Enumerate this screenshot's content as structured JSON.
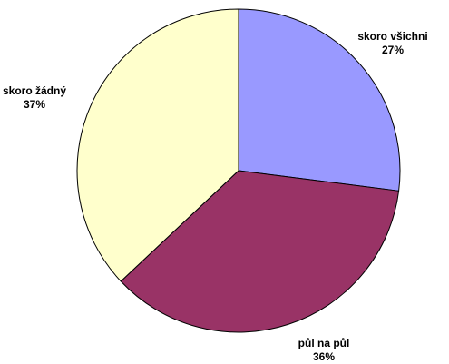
{
  "chart_data": {
    "type": "pie",
    "title": "",
    "slices": [
      {
        "label": "skoro všichni",
        "value": 27,
        "value_label": "27%",
        "color": "#9999ff"
      },
      {
        "label": "půl na půl",
        "value": 36,
        "value_label": "36%",
        "color": "#993366"
      },
      {
        "label": "skoro žádný",
        "value": 37,
        "value_label": "37%",
        "color": "#ffffcc"
      }
    ],
    "start": "12 o'clock",
    "direction": "clockwise",
    "slice_outline_color": "#000000"
  }
}
